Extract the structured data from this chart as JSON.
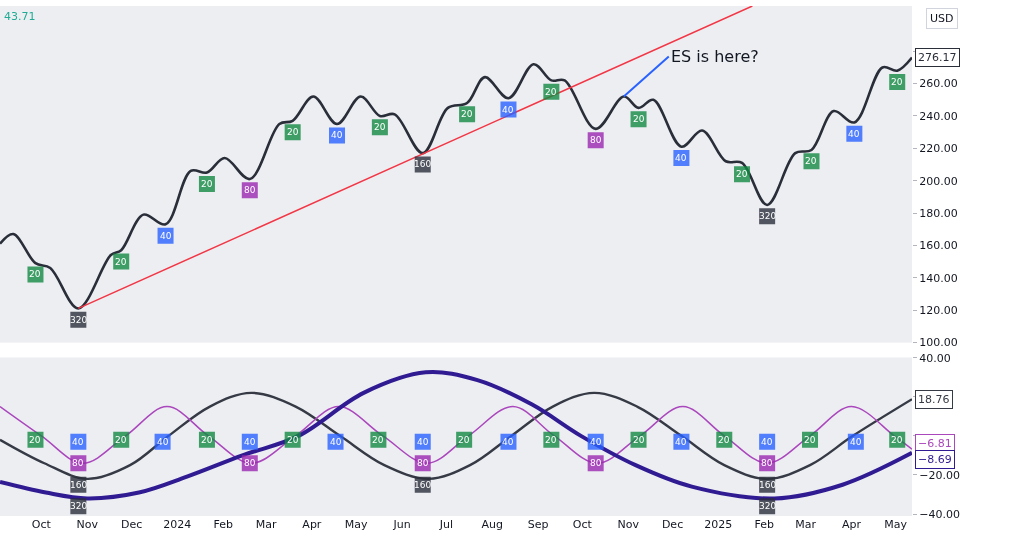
{
  "chart_data": [
    {
      "type": "line",
      "xlim": [
        "2023-09-03",
        "2025-05-12"
      ],
      "ylim": [
        100,
        308
      ],
      "tick_labels": "y",
      "yticks": [
        {
          "value": 100,
          "label": "100.00"
        },
        {
          "value": 120,
          "label": "120.00"
        },
        {
          "value": 140,
          "label": "140.00"
        },
        {
          "value": 160,
          "label": "160.00"
        },
        {
          "value": 180,
          "label": "180.00"
        },
        {
          "value": 200,
          "label": "200.00"
        },
        {
          "value": 220,
          "label": "220.00"
        },
        {
          "value": 240,
          "label": "240.00"
        },
        {
          "value": 260,
          "label": "260.00"
        },
        {
          "value": 280,
          "label": null
        }
      ],
      "series": [
        {
          "color": "#2a2e39",
          "x": [
            "2023-09-03",
            "2023-09-12",
            "2023-09-27",
            "2023-10-07",
            "2023-10-26",
            "2023-11-17",
            "2023-11-24",
            "2023-12-09",
            "2023-12-24",
            "2024-01-10",
            "2024-01-21",
            "2024-02-02",
            "2024-02-19",
            "2024-03-10",
            "2024-03-19",
            "2024-04-02",
            "2024-04-18",
            "2024-05-04",
            "2024-05-17",
            "2024-05-27",
            "2024-06-15",
            "2024-07-02",
            "2024-07-15",
            "2024-07-27",
            "2024-08-12",
            "2024-08-29",
            "2024-09-10",
            "2024-09-19",
            "2024-10-10",
            "2024-10-29",
            "2024-11-08",
            "2024-11-18",
            "2024-12-07",
            "2024-12-21",
            "2025-01-06",
            "2025-01-17",
            "2025-02-03",
            "2025-02-22",
            "2025-03-05",
            "2025-03-20",
            "2025-04-03",
            "2025-04-22",
            "2025-05-02",
            "2025-05-12"
          ],
          "values": [
            161,
            167,
            149,
            146,
            121,
            154,
            157,
            179,
            173,
            206,
            205,
            214,
            201,
            235,
            237,
            252,
            235,
            252,
            240,
            241,
            217,
            245,
            248,
            264,
            251,
            272,
            262,
            262,
            232,
            252,
            245,
            250,
            221,
            231,
            212,
            211,
            185,
            217,
            219,
            243,
            236,
            270,
            268,
            276.17
          ],
          "value_labels": [
            null,
            null,
            null,
            null,
            null,
            null,
            null,
            null,
            null,
            null,
            null,
            null,
            null,
            null,
            null,
            null,
            null,
            null,
            null,
            null,
            null,
            null,
            null,
            null,
            null,
            null,
            null,
            null,
            null,
            null,
            null,
            null,
            null,
            null,
            null,
            null,
            null,
            null,
            null,
            null,
            null,
            null,
            null,
            "276.17"
          ]
        },
        {
          "color": "#f23645",
          "x": [
            "2023-10-26",
            "2025-01-24"
          ],
          "values": [
            121,
            308
          ]
        },
        {
          "type": "scatter",
          "marker": "square",
          "color": "#138a42",
          "x": [
            "2023-09-27",
            "2023-11-24",
            "2024-01-21",
            "2024-03-19",
            "2024-05-17",
            "2024-07-15",
            "2024-09-10",
            "2024-11-08",
            "2025-01-17",
            "2025-03-05",
            "2025-05-02"
          ],
          "values": [
            142,
            150,
            198,
            230,
            233,
            241,
            255,
            238,
            204,
            212,
            261
          ]
        },
        {
          "type": "scatter",
          "marker": "square",
          "color": "#2962ff",
          "x": [
            "2023-12-24",
            "2024-04-18",
            "2024-08-12",
            "2024-12-07",
            "2025-04-03"
          ],
          "values": [
            166,
            228,
            244,
            214,
            229
          ]
        },
        {
          "type": "scatter",
          "marker": "square",
          "color": "#9c27b0",
          "x": [
            "2024-02-19",
            "2024-10-10"
          ],
          "values": [
            194,
            225
          ]
        },
        {
          "type": "scatter",
          "marker": "square",
          "color": "#2a2e39",
          "x": [
            "2024-06-15"
          ],
          "values": [
            210
          ]
        },
        {
          "type": "scatter",
          "marker": "square",
          "color": "#2a2e39",
          "x": [
            "2023-10-26",
            "2025-02-03"
          ],
          "values": [
            114,
            178
          ]
        }
      ],
      "annotations": [
        "43.71",
        "USD",
        {
          "text": "ES is here?",
          "x": "2024-10-29",
          "y": 252
        },
        {
          "text": "20",
          "x": "2023-09-27",
          "y": 142
        },
        {
          "text": "20",
          "x": "2023-11-24",
          "y": 150
        },
        {
          "text": "20",
          "x": "2024-01-21",
          "y": 198
        },
        {
          "text": "20",
          "x": "2024-03-19",
          "y": 230
        },
        {
          "text": "20",
          "x": "2024-05-17",
          "y": 233
        },
        {
          "text": "20",
          "x": "2024-07-15",
          "y": 241
        },
        {
          "text": "20",
          "x": "2024-09-10",
          "y": 255
        },
        {
          "text": "20",
          "x": "2024-11-08",
          "y": 238
        },
        {
          "text": "20",
          "x": "2025-01-17",
          "y": 204
        },
        {
          "text": "20",
          "x": "2025-03-05",
          "y": 212
        },
        {
          "text": "20",
          "x": "2025-05-02",
          "y": 261
        },
        {
          "text": "40",
          "x": "2023-12-24",
          "y": 166
        },
        {
          "text": "40",
          "x": "2024-04-18",
          "y": 228
        },
        {
          "text": "40",
          "x": "2024-08-12",
          "y": 244
        },
        {
          "text": "40",
          "x": "2024-12-07",
          "y": 214
        },
        {
          "text": "40",
          "x": "2025-04-03",
          "y": 229
        },
        {
          "text": "80",
          "x": "2024-02-19",
          "y": 194
        },
        {
          "text": "80",
          "x": "2024-10-10",
          "y": 225
        },
        {
          "text": "160",
          "x": "2024-06-15",
          "y": 210
        },
        {
          "text": "320",
          "x": "2023-10-26",
          "y": 114
        },
        {
          "text": "320",
          "x": "2025-02-03",
          "y": 178
        }
      ]
    },
    {
      "type": "line",
      "xlim": [
        "2023-09-03",
        "2025-05-12"
      ],
      "ylim": [
        -41,
        40
      ],
      "yticks": [
        {
          "value": 40,
          "label": "40.00"
        },
        {
          "value": 20,
          "label": null
        },
        {
          "value": 0,
          "label": null
        },
        {
          "value": -20,
          "label": "−20.00"
        },
        {
          "value": -40,
          "label": "−40.00"
        }
      ],
      "xticks": [
        {
          "value": "2023-10-01",
          "label": "Oct"
        },
        {
          "value": "2023-11-01",
          "label": "Nov"
        },
        {
          "value": "2023-12-01",
          "label": "Dec"
        },
        {
          "value": "2024-01-01",
          "label": "2024"
        },
        {
          "value": "2024-02-01",
          "label": "Feb"
        },
        {
          "value": "2024-03-01",
          "label": "Mar"
        },
        {
          "value": "2024-04-01",
          "label": "Apr"
        },
        {
          "value": "2024-05-01",
          "label": "May"
        },
        {
          "value": "2024-06-01",
          "label": "Jun"
        },
        {
          "value": "2024-07-01",
          "label": "Jul"
        },
        {
          "value": "2024-08-01",
          "label": "Aug"
        },
        {
          "value": "2024-09-01",
          "label": "Sep"
        },
        {
          "value": "2024-10-01",
          "label": "Oct"
        },
        {
          "value": "2024-11-01",
          "label": "Nov"
        },
        {
          "value": "2024-12-01",
          "label": "Dec"
        },
        {
          "value": "2025-01-01",
          "label": "2025"
        },
        {
          "value": "2025-02-01",
          "label": "Feb"
        },
        {
          "value": "2025-03-01",
          "label": "Mar"
        },
        {
          "value": "2025-04-01",
          "label": "Apr"
        },
        {
          "value": "2025-05-01",
          "label": "May"
        }
      ],
      "series": [
        {
          "color": "#363a45",
          "x": [
            "2023-09-03",
            "2023-10-03",
            "2023-11-01",
            "2023-11-30",
            "2023-12-26",
            "2024-01-23",
            "2024-02-20",
            "2024-03-21",
            "2024-04-20",
            "2024-05-20",
            "2024-06-19",
            "2024-07-17",
            "2024-08-14",
            "2024-09-11",
            "2024-10-09",
            "2024-11-07",
            "2024-12-07",
            "2025-01-05",
            "2025-02-03",
            "2025-03-04",
            "2025-04-02",
            "2025-05-12"
          ],
          "values": [
            -2,
            -14,
            -22,
            -15,
            0,
            15,
            22,
            15,
            0,
            -15,
            -22,
            -15,
            0,
            15,
            22,
            15,
            0,
            -15,
            -22,
            -15,
            0,
            18.76
          ],
          "value_labels": [
            null,
            null,
            null,
            null,
            null,
            null,
            null,
            null,
            null,
            null,
            null,
            null,
            null,
            null,
            null,
            null,
            null,
            null,
            null,
            null,
            null,
            "18.76"
          ]
        },
        {
          "color": "#ab47bc",
          "x": [
            "2023-09-03",
            "2023-10-01",
            "2023-10-29",
            "2023-11-27",
            "2023-12-25",
            "2024-01-22",
            "2024-02-20",
            "2024-03-21",
            "2024-04-19",
            "2024-05-19",
            "2024-06-18",
            "2024-07-16",
            "2024-08-15",
            "2024-09-12",
            "2024-10-11",
            "2024-11-09",
            "2024-12-08",
            "2025-01-05",
            "2025-02-03",
            "2025-03-04",
            "2025-04-01",
            "2025-04-30",
            "2025-05-12"
          ],
          "values": [
            15,
            0,
            -14,
            0,
            15,
            0,
            -14,
            0,
            15,
            0,
            -14,
            0,
            15,
            0,
            -14,
            0,
            15,
            0,
            -14,
            0,
            15,
            0,
            -6.81
          ],
          "value_labels": [
            null,
            null,
            null,
            null,
            null,
            null,
            null,
            null,
            null,
            null,
            null,
            null,
            null,
            null,
            null,
            null,
            null,
            null,
            null,
            null,
            null,
            null,
            "−6.81"
          ]
        },
        {
          "color": "#311b92",
          "x": [
            "2023-09-03",
            "2023-10-04",
            "2023-11-01",
            "2023-12-06",
            "2024-01-07",
            "2024-02-14",
            "2024-03-23",
            "2024-05-06",
            "2024-06-17",
            "2024-07-22",
            "2024-08-28",
            "2024-09-30",
            "2024-11-06",
            "2024-12-14",
            "2025-02-08",
            "2025-03-26",
            "2025-05-12"
          ],
          "values": [
            -23.6,
            -29,
            -32,
            -29,
            -21,
            -10,
            0,
            22,
            32.5,
            28.5,
            16,
            0,
            -15,
            -26,
            -32,
            -25,
            -8.69
          ],
          "value_labels": [
            null,
            null,
            null,
            null,
            null,
            null,
            null,
            null,
            null,
            null,
            null,
            null,
            null,
            null,
            null,
            null,
            "−8.69"
          ]
        },
        {
          "type": "scatter",
          "marker": "square",
          "color": "#138a42",
          "x": [
            "2023-09-27",
            "2023-11-24",
            "2024-01-21",
            "2024-03-19",
            "2024-05-16",
            "2024-07-13",
            "2024-09-10",
            "2024-11-08",
            "2025-01-05",
            "2025-03-04",
            "2025-05-02"
          ],
          "values": [
            -2,
            -2,
            -2,
            -2,
            -2,
            -2,
            -2,
            -2,
            -2,
            -2,
            -2
          ]
        },
        {
          "type": "scatter",
          "marker": "square",
          "color": "#2962ff",
          "x": [
            "2023-10-26",
            "2023-12-22",
            "2024-02-19",
            "2024-04-17",
            "2024-06-15",
            "2024-08-12",
            "2024-10-10",
            "2024-12-07",
            "2025-02-03",
            "2025-04-04"
          ],
          "values": [
            -3,
            -3,
            -3,
            -3,
            -3,
            -3,
            -3,
            -3,
            -3,
            -3
          ]
        },
        {
          "type": "scatter",
          "marker": "square",
          "color": "#9c27b0",
          "x": [
            "2023-10-26",
            "2024-02-19",
            "2024-06-15",
            "2024-10-10",
            "2025-02-03"
          ],
          "values": [
            -14,
            -14,
            -14,
            -14,
            -14
          ]
        },
        {
          "type": "scatter",
          "marker": "square",
          "color": "#2a2e39",
          "x": [
            "2023-10-26",
            "2024-06-15",
            "2025-02-03"
          ],
          "values": [
            -25,
            -25,
            -25
          ]
        },
        {
          "type": "scatter",
          "marker": "square",
          "color": "#2a2e39",
          "x": [
            "2023-10-26",
            "2025-02-03"
          ],
          "values": [
            -36,
            -36
          ]
        }
      ],
      "annotations": [
        {
          "text": "20",
          "x": "2023-09-27",
          "y": -2
        },
        {
          "text": "20",
          "x": "2023-11-24",
          "y": -2
        },
        {
          "text": "20",
          "x": "2024-01-21",
          "y": -2
        },
        {
          "text": "20",
          "x": "2024-03-19",
          "y": -2
        },
        {
          "text": "20",
          "x": "2024-05-16",
          "y": -2
        },
        {
          "text": "20",
          "x": "2024-07-13",
          "y": -2
        },
        {
          "text": "20",
          "x": "2024-09-10",
          "y": -2
        },
        {
          "text": "20",
          "x": "2024-11-08",
          "y": -2
        },
        {
          "text": "20",
          "x": "2025-01-05",
          "y": -2
        },
        {
          "text": "20",
          "x": "2025-03-04",
          "y": -2
        },
        {
          "text": "20",
          "x": "2025-05-02",
          "y": -2
        },
        {
          "text": "40",
          "x": "2023-10-26",
          "y": -3
        },
        {
          "text": "40",
          "x": "2023-12-22",
          "y": -3
        },
        {
          "text": "40",
          "x": "2024-02-19",
          "y": -3
        },
        {
          "text": "40",
          "x": "2024-04-17",
          "y": -3
        },
        {
          "text": "40",
          "x": "2024-06-15",
          "y": -3
        },
        {
          "text": "40",
          "x": "2024-08-12",
          "y": -3
        },
        {
          "text": "40",
          "x": "2024-10-10",
          "y": -3
        },
        {
          "text": "40",
          "x": "2024-12-07",
          "y": -3
        },
        {
          "text": "40",
          "x": "2025-02-03",
          "y": -3
        },
        {
          "text": "40",
          "x": "2025-04-04",
          "y": -3
        },
        {
          "text": "80",
          "x": "2023-10-26",
          "y": -14
        },
        {
          "text": "80",
          "x": "2024-02-19",
          "y": -14
        },
        {
          "text": "80",
          "x": "2024-06-15",
          "y": -14
        },
        {
          "text": "80",
          "x": "2024-10-10",
          "y": -14
        },
        {
          "text": "80",
          "x": "2025-02-03",
          "y": -14
        },
        {
          "text": "160",
          "x": "2023-10-26",
          "y": -25
        },
        {
          "text": "160",
          "x": "2024-06-15",
          "y": -25
        },
        {
          "text": "160",
          "x": "2025-02-03",
          "y": -25
        },
        {
          "text": "320",
          "x": "2023-10-26",
          "y": -36
        },
        {
          "text": "320",
          "x": "2025-02-03",
          "y": -36
        }
      ]
    }
  ]
}
